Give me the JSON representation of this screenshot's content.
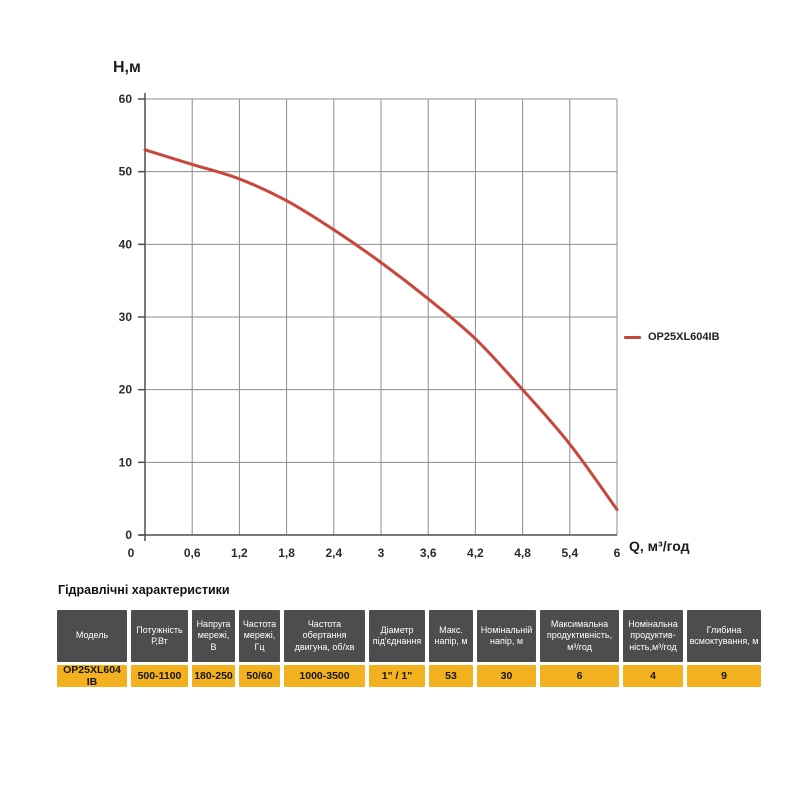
{
  "chart_data": {
    "type": "line",
    "title": "",
    "xlabel": "Q,  м³/год",
    "ylabel": "H,м",
    "x": [
      0,
      0.6,
      1.2,
      1.8,
      2.4,
      3,
      3.6,
      4.2,
      4.8,
      5.4,
      6
    ],
    "x_tick_labels": [
      "0",
      "0,6",
      "1,2",
      "1,8",
      "2,4",
      "3",
      "3,6",
      "4,2",
      "4,8",
      "5,4",
      "6"
    ],
    "y_ticks": [
      0,
      10,
      20,
      30,
      40,
      50,
      60
    ],
    "xlim": [
      0,
      6
    ],
    "ylim": [
      0,
      60
    ],
    "grid": true,
    "grid_color": "#8c8c8c",
    "axis_color": "#4f4f4f",
    "legend_position": "right",
    "series": [
      {
        "name": "OP25XL604IB",
        "color": "#c9463d",
        "values": [
          53,
          51,
          49,
          46,
          42,
          37.5,
          32.5,
          27,
          20,
          12.5,
          3.5
        ]
      }
    ]
  },
  "table": {
    "title": "Гідравлічні характеристики",
    "header_bg": "#4d4d4d",
    "row_bg": "#f3b120",
    "columns": [
      {
        "header": "Модель",
        "value": "OP25XL604 IB"
      },
      {
        "header": "Потужність Р,Вт",
        "value": "500-1100"
      },
      {
        "header": "Напруга мережі, В",
        "value": "180-250"
      },
      {
        "header": "Частота мережі, Гц",
        "value": "50/60"
      },
      {
        "header": "Частота обертання двигуна, об/хв",
        "value": "1000-3500"
      },
      {
        "header": "Діаметр під'єднання",
        "value": "1\" / 1\""
      },
      {
        "header": "Макс. напір, м",
        "value": "53"
      },
      {
        "header": "Номінальній напір, м",
        "value": "30"
      },
      {
        "header": "Максимальна продуктивність, м³/год",
        "value": "6"
      },
      {
        "header": "Номінальна продуктив-ність,м³/год",
        "value": "4"
      },
      {
        "header": "Глибина всмоктування, м",
        "value": "9"
      }
    ]
  }
}
